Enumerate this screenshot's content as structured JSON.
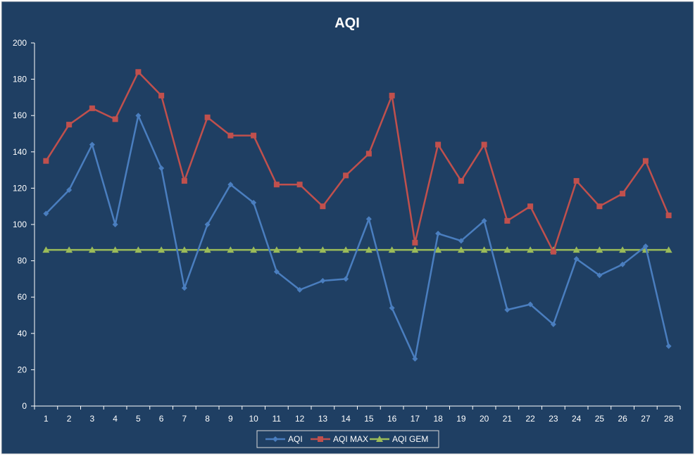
{
  "chart_data": {
    "type": "line",
    "title": "AQI",
    "xlabel": "",
    "ylabel": "",
    "ylim": [
      0,
      200
    ],
    "yticks": [
      0,
      20,
      40,
      60,
      80,
      100,
      120,
      140,
      160,
      180,
      200
    ],
    "grid": false,
    "legend_position": "bottom",
    "colors": {
      "background": "#1f3f63",
      "axis": "#ffffff",
      "text": "#ffffff"
    },
    "categories": [
      "1",
      "2",
      "3",
      "4",
      "5",
      "6",
      "7",
      "8",
      "9",
      "10",
      "11",
      "12",
      "13",
      "14",
      "15",
      "16",
      "17",
      "18",
      "19",
      "20",
      "21",
      "22",
      "23",
      "24",
      "25",
      "26",
      "27",
      "28"
    ],
    "series": [
      {
        "name": "AQI",
        "color": "#4a7ebf",
        "marker": "diamond",
        "values": [
          106,
          119,
          144,
          100,
          160,
          131,
          65,
          100,
          122,
          112,
          74,
          64,
          69,
          70,
          103,
          54,
          26,
          95,
          91,
          102,
          53,
          56,
          45,
          81,
          72,
          78,
          88,
          33
        ]
      },
      {
        "name": "AQI MAX",
        "color": "#c0504d",
        "marker": "square",
        "values": [
          135,
          155,
          164,
          158,
          184,
          171,
          124,
          159,
          149,
          149,
          122,
          122,
          110,
          127,
          139,
          171,
          90,
          144,
          124,
          144,
          102,
          110,
          85,
          124,
          110,
          117,
          135,
          105
        ]
      },
      {
        "name": "AQI GEM",
        "color": "#9bbb59",
        "marker": "triangle",
        "values": [
          86,
          86,
          86,
          86,
          86,
          86,
          86,
          86,
          86,
          86,
          86,
          86,
          86,
          86,
          86,
          86,
          86,
          86,
          86,
          86,
          86,
          86,
          86,
          86,
          86,
          86,
          86,
          86
        ]
      }
    ]
  }
}
